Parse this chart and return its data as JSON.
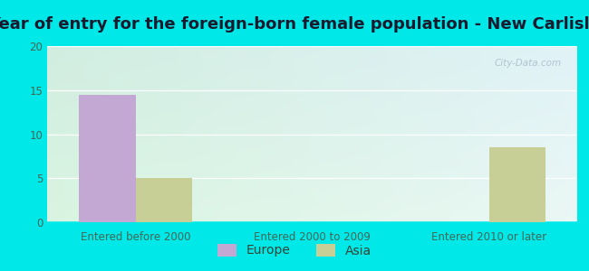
{
  "title": "Year of entry for the foreign-born female population - New Carlisle",
  "categories": [
    "Entered before 2000",
    "Entered 2000 to 2009",
    "Entered 2010 or later"
  ],
  "series": [
    {
      "label": "Europe",
      "values": [
        14.5,
        0,
        0
      ],
      "color": "#c4a8d4"
    },
    {
      "label": "Asia",
      "values": [
        5.0,
        0,
        8.5
      ],
      "color": "#c8cf96"
    }
  ],
  "ylim": [
    0,
    20
  ],
  "yticks": [
    0,
    5,
    10,
    15,
    20
  ],
  "bar_width": 0.32,
  "background_outer": "#00e8e8",
  "title_fontsize": 13,
  "tick_fontsize": 8.5,
  "legend_fontsize": 10,
  "watermark": "City-Data.com"
}
